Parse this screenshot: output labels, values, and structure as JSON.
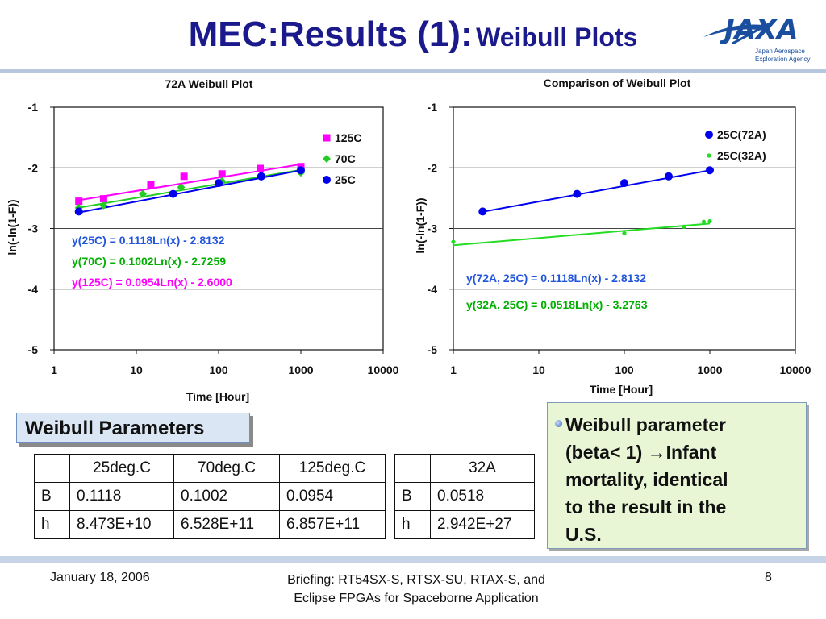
{
  "slide": {
    "title_main": "MEC:Results (1):",
    "title_sub": "Weibull Plots",
    "logo": {
      "icon": "jaxa-logo",
      "text": "JAXA",
      "caption_line1": "Japan Aerospace",
      "caption_line2": "Exploration Agency",
      "color": "#1a4fa0"
    }
  },
  "chart_data": [
    {
      "type": "scatter",
      "title": "72A Weibull Plot",
      "xlabel": "Time [Hour]",
      "ylabel": "ln(-ln(1-F))",
      "x_scale": "log",
      "xlim": [
        1,
        10000
      ],
      "ylim": [
        -5,
        -1
      ],
      "x_ticks": [
        "1",
        "10",
        "100",
        "1000",
        "10000"
      ],
      "y_ticks": [
        "-1",
        "-2",
        "-3",
        "-4",
        "-5"
      ],
      "grid": "horizontal",
      "legend": "top-right",
      "series": [
        {
          "name": "125C",
          "marker": "square",
          "color": "#ff00ff",
          "x": [
            2,
            4,
            15,
            38,
            110,
            320,
            1000
          ],
          "y": [
            -2.55,
            -2.51,
            -2.28,
            -2.14,
            -2.1,
            -2.01,
            -1.98
          ],
          "fit": {
            "slope": 0.0954,
            "intercept": -2.6,
            "label": "y(125C) = 0.0954Ln(x) - 2.6000",
            "color": "#ff00ff"
          }
        },
        {
          "name": "70C",
          "marker": "diamond",
          "color": "#22cc22",
          "x": [
            2,
            4,
            12,
            35,
            110,
            330,
            1000
          ],
          "y": [
            -2.66,
            -2.62,
            -2.43,
            -2.32,
            -2.22,
            -2.15,
            -2.08
          ],
          "fit": {
            "slope": 0.1002,
            "intercept": -2.7259,
            "label": "y(70C)   = 0.1002Ln(x) - 2.7259",
            "color": "#00b000"
          }
        },
        {
          "name": "25C",
          "marker": "circle",
          "color": "#0000ee",
          "x": [
            2,
            28,
            100,
            330,
            1000
          ],
          "y": [
            -2.72,
            -2.43,
            -2.25,
            -2.14,
            -2.04
          ],
          "fit": {
            "slope": 0.1118,
            "intercept": -2.8132,
            "label": "y(25C)    = 0.1118Ln(x) - 2.8132",
            "color": "#2255dd"
          }
        }
      ]
    },
    {
      "type": "scatter",
      "title": "Comparison of  Weibull Plot",
      "xlabel": "Time [Hour]",
      "ylabel": "ln(-ln(1-F))",
      "x_scale": "log",
      "xlim": [
        1,
        10000
      ],
      "ylim": [
        -5,
        -1
      ],
      "x_ticks": [
        "1",
        "10",
        "100",
        "1000",
        "10000"
      ],
      "y_ticks": [
        "-1",
        "-2",
        "-3",
        "-4",
        "-5"
      ],
      "grid": "horizontal",
      "legend": "top-right",
      "series": [
        {
          "name": "25C(72A)",
          "marker": "circle",
          "color": "#0000ee",
          "x": [
            2.2,
            28,
            100,
            330,
            1000
          ],
          "y": [
            -2.72,
            -2.43,
            -2.25,
            -2.14,
            -2.04
          ],
          "fit": {
            "slope": 0.1118,
            "intercept": -2.8132,
            "label": "y(72A, 25C) = 0.1118Ln(x) - 2.8132",
            "color": "#2255dd"
          }
        },
        {
          "name": "25C(32A)",
          "marker": "small-circle",
          "color": "#22dd22",
          "x": [
            1,
            100,
            500,
            850,
            1000
          ],
          "y": [
            -3.22,
            -3.08,
            -2.97,
            -2.89,
            -2.88
          ],
          "fit": {
            "slope": 0.0518,
            "intercept": -3.2763,
            "label": "y(32A, 25C) = 0.0518Ln(x) - 3.2763",
            "color": "#00b000"
          }
        }
      ]
    }
  ],
  "weibull_parameters": {
    "label": "Weibull Parameters",
    "table_main": {
      "header": [
        "",
        "25deg.C",
        "70deg.C",
        "125deg.C"
      ],
      "rows": [
        [
          "B",
          "0.1118",
          "0.1002",
          "0.0954"
        ],
        [
          "h",
          "8.473E+10",
          "6.528E+11",
          "6.857E+11"
        ]
      ]
    },
    "table_32a": {
      "header": [
        "",
        "32A"
      ],
      "rows": [
        [
          "B",
          "0.0518"
        ],
        [
          "h",
          "2.942E+27"
        ]
      ]
    }
  },
  "note": {
    "line1": "Weibull parameter",
    "line2a": "(beta< 1)  ",
    "arrow": "→",
    "line2b": "Infant",
    "line3": "mortality, identical",
    "line4": "to the result in the",
    "line5": "U.S."
  },
  "footer": {
    "date": "January 18, 2006",
    "briefing_line1": "Briefing: RT54SX-S, RTSX-SU, RTAX-S, and",
    "briefing_line2": "Eclipse FPGAs for Spaceborne Application",
    "page": "8"
  }
}
